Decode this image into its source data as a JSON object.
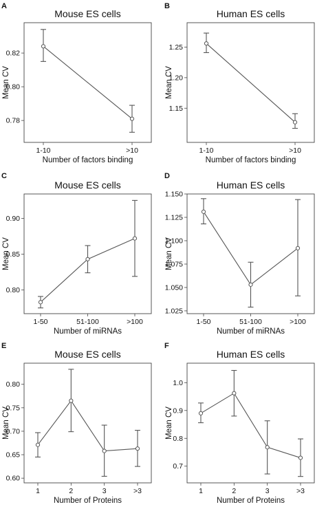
{
  "chart_data": [
    {
      "letter": "A",
      "type": "line",
      "title": "Mouse ES cells",
      "xlabel": "Number of factors binding",
      "ylabel": "Mean CV",
      "categories": [
        "1-10",
        ">10"
      ],
      "values": [
        0.824,
        0.781
      ],
      "err_low": [
        0.815,
        0.773
      ],
      "err_high": [
        0.834,
        0.789
      ],
      "ylim": [
        0.767,
        0.838
      ],
      "yticks": [
        "0.78",
        "0.80",
        "0.82"
      ]
    },
    {
      "letter": "B",
      "type": "line",
      "title": "Human ES cells",
      "xlabel": "Number of factors binding",
      "ylabel": "Mean CV",
      "categories": [
        "1-10",
        ">10"
      ],
      "values": [
        1.256,
        1.127
      ],
      "err_low": [
        1.241,
        1.117
      ],
      "err_high": [
        1.273,
        1.141
      ],
      "ylim": [
        1.094,
        1.29
      ],
      "yticks": [
        "1.15",
        "1.20",
        "1.25"
      ]
    },
    {
      "letter": "C",
      "type": "line",
      "title": "Mouse ES cells",
      "xlabel": "Number of miRNAs",
      "ylabel": "Mean CV",
      "categories": [
        "1-50",
        "51-100",
        ">100"
      ],
      "values": [
        0.783,
        0.843,
        0.872
      ],
      "err_low": [
        0.775,
        0.824,
        0.819
      ],
      "err_high": [
        0.791,
        0.862,
        0.925
      ],
      "ylim": [
        0.767,
        0.934
      ],
      "yticks": [
        "0.80",
        "0.85",
        "0.90"
      ]
    },
    {
      "letter": "D",
      "type": "line",
      "title": "Human ES cells",
      "xlabel": "Number of miRNAs",
      "ylabel": "Mean CV",
      "categories": [
        "1-50",
        "51-100",
        ">100"
      ],
      "values": [
        1.131,
        1.053,
        1.092
      ],
      "err_low": [
        1.118,
        1.029,
        1.041
      ],
      "err_high": [
        1.145,
        1.077,
        1.144
      ],
      "ylim": [
        1.022,
        1.15
      ],
      "yticks": [
        "1.025",
        "1.050",
        "1.075",
        "1.100",
        "1.125",
        "1.150"
      ]
    },
    {
      "letter": "E",
      "type": "line",
      "title": "Mouse ES cells",
      "xlabel": "Number of Proteins",
      "ylabel": "Mean CV",
      "categories": [
        "1",
        "2",
        "3",
        ">3"
      ],
      "values": [
        0.671,
        0.765,
        0.658,
        0.663
      ],
      "err_low": [
        0.645,
        0.699,
        0.604,
        0.625
      ],
      "err_high": [
        0.697,
        0.832,
        0.713,
        0.702
      ],
      "ylim": [
        0.59,
        0.845
      ],
      "yticks": [
        "0.60",
        "0.65",
        "0.70",
        "0.75",
        "0.80"
      ]
    },
    {
      "letter": "F",
      "type": "line",
      "title": "Human ES cells",
      "xlabel": "Number of Proteins",
      "ylabel": "Mean CV",
      "categories": [
        "1",
        "2",
        "3",
        ">3"
      ],
      "values": [
        0.89,
        0.962,
        0.768,
        0.73
      ],
      "err_low": [
        0.856,
        0.88,
        0.672,
        0.663
      ],
      "err_high": [
        0.927,
        1.044,
        0.863,
        0.798
      ],
      "ylim": [
        0.64,
        1.07
      ],
      "yticks": [
        "0.7",
        "0.8",
        "0.9",
        "1.0"
      ]
    }
  ]
}
